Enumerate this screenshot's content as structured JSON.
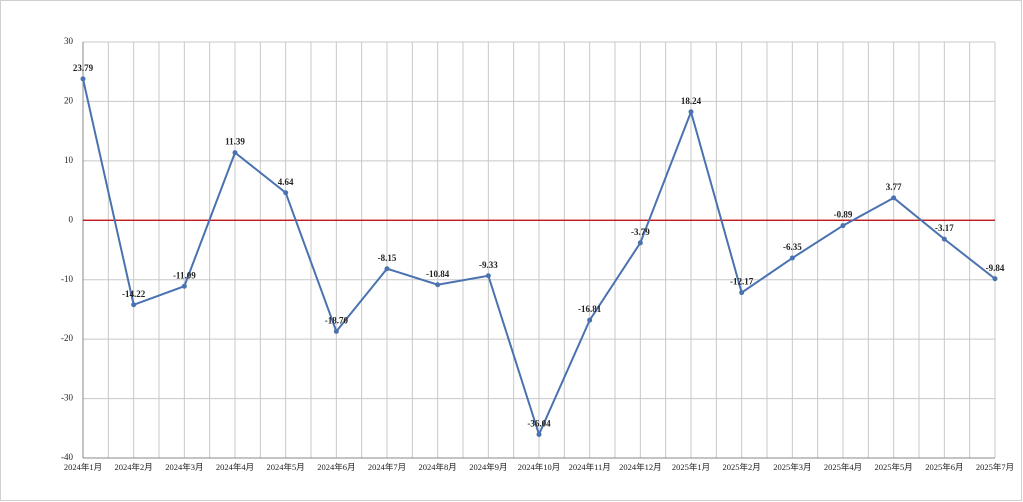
{
  "chart_data": {
    "type": "line",
    "categories": [
      "2024年1月",
      "2024年2月",
      "2024年3月",
      "2024年4月",
      "2024年5月",
      "2024年6月",
      "2024年7月",
      "2024年8月",
      "2024年9月",
      "2024年10月",
      "2024年11月",
      "2024年12月",
      "2025年1月",
      "2025年2月",
      "2025年3月",
      "2025年4月",
      "2025年5月",
      "2025年6月",
      "2025年7月"
    ],
    "series": [
      {
        "color": "#4a72b0",
        "values": [
          23.79,
          -14.22,
          -11.09,
          11.39,
          4.64,
          -18.7,
          -8.15,
          -10.84,
          -9.33,
          -36.04,
          -16.81,
          -3.79,
          18.24,
          -12.17,
          -6.35,
          -0.89,
          3.77,
          -3.17,
          -9.84
        ],
        "value_labels": [
          "23.79",
          "-14.22",
          "-11.09",
          "11.39",
          "4.64",
          "-18.70",
          "-8.15",
          "-10.84",
          "-9.33",
          "-36.04",
          "-16.81",
          "-3.79",
          "18.24",
          "-12.17",
          "-6.35",
          "-0.89",
          "3.77",
          "-3.17",
          "-9.84"
        ]
      }
    ],
    "ylim": [
      -40,
      30
    ],
    "yticks": [
      -40,
      -30,
      -20,
      -10,
      0,
      10,
      20,
      30
    ],
    "grid": true,
    "zero_line_color": "#c00000"
  }
}
